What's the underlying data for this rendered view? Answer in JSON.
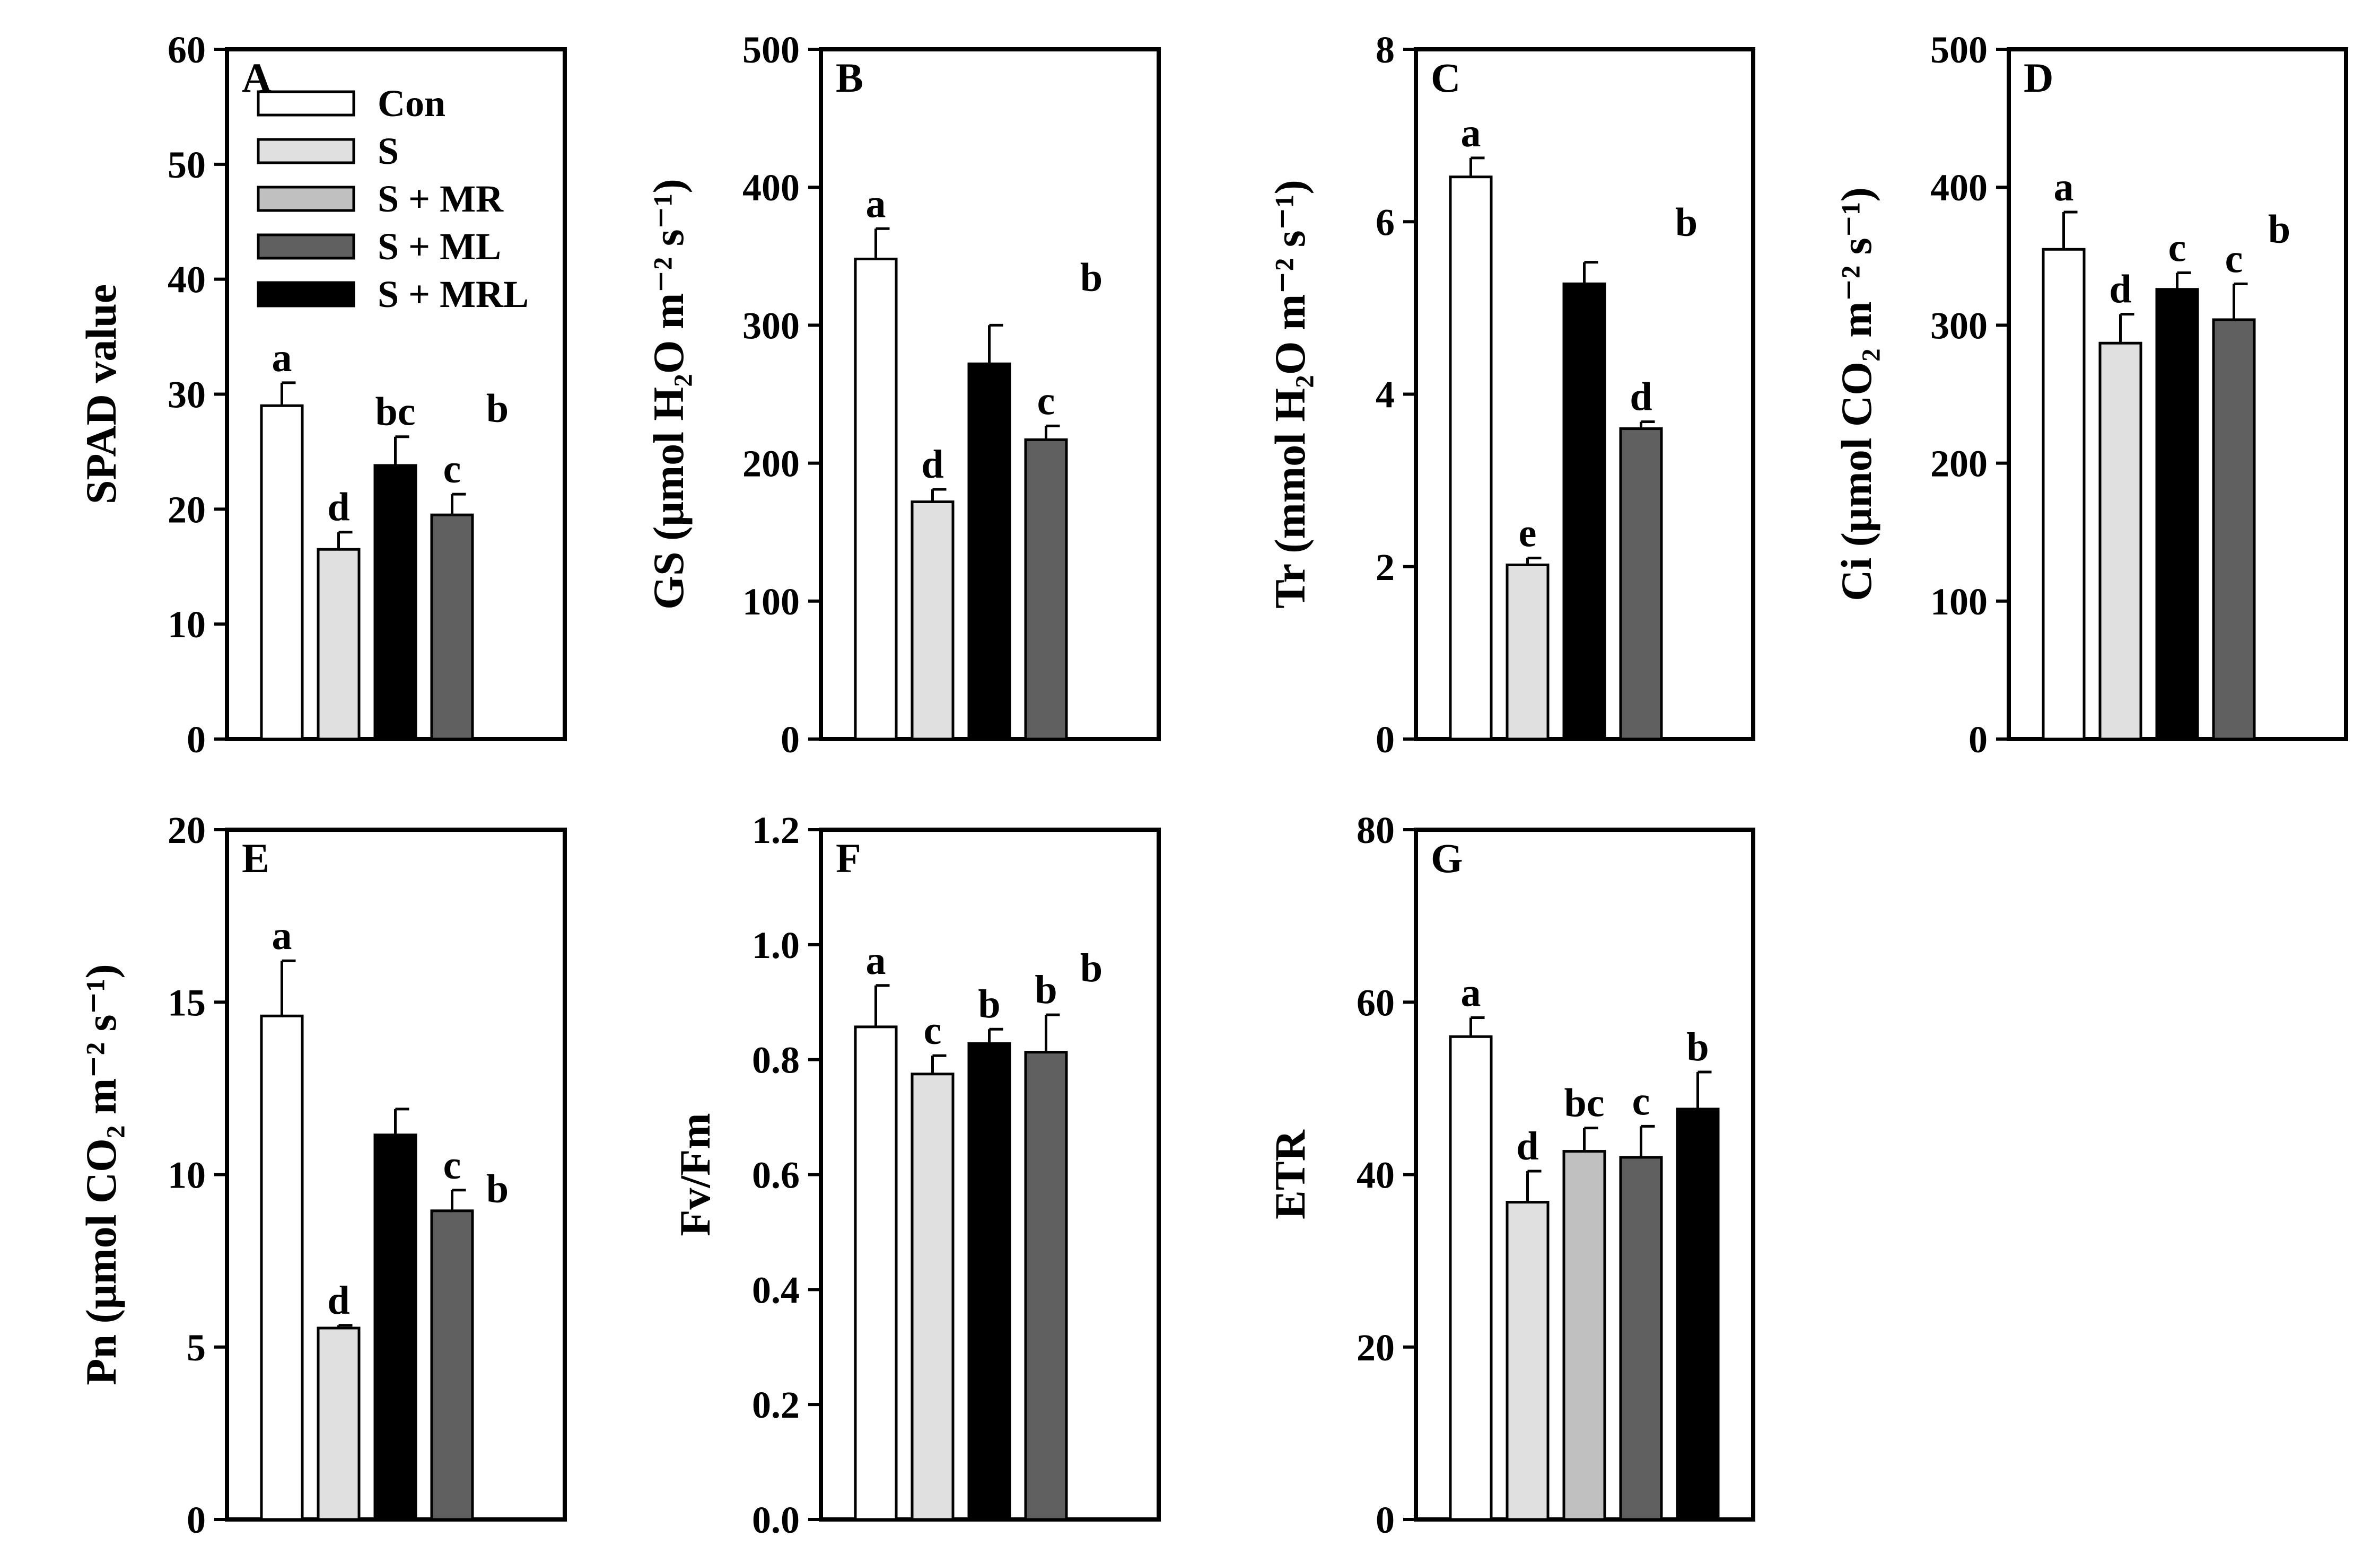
{
  "legend": [
    {
      "label": "Con",
      "color": "#ffffff"
    },
    {
      "label": "S",
      "color": "#e0e0e0"
    },
    {
      "label": "S + MR",
      "color": "#c0c0c0"
    },
    {
      "label": "S + ML",
      "color": "#606060"
    },
    {
      "label": "S + MRL",
      "color": "#000000"
    }
  ],
  "chart_data": [
    {
      "type": "bar",
      "panel": "A",
      "ylabel": "SPAD value",
      "ylim": [
        0,
        60
      ],
      "ticks": [
        "0",
        "10",
        "20",
        "30",
        "40",
        "50",
        "60"
      ],
      "categories": [
        "Con",
        "S",
        "S + MRL",
        "S + ML"
      ],
      "colors": [
        "#ffffff",
        "#e0e0e0",
        "#000000",
        "#606060"
      ],
      "values": [
        29,
        16.5,
        23.8,
        19.5
      ],
      "errors": [
        2,
        1.5,
        2.5,
        1.8
      ],
      "letters": [
        "a",
        "d",
        "bc",
        "c"
      ],
      "extra_letter": "b"
    },
    {
      "type": "bar",
      "panel": "B",
      "ylabel": "GS (μmol H₂O m⁻² s⁻¹)",
      "ylim": [
        0,
        500
      ],
      "ticks": [
        "0",
        "100",
        "200",
        "300",
        "400",
        "500"
      ],
      "categories": [
        "Con",
        "S",
        "S + MRL",
        "S + ML"
      ],
      "colors": [
        "#ffffff",
        "#e0e0e0",
        "#000000",
        "#606060"
      ],
      "values": [
        348,
        172,
        272,
        217
      ],
      "errors": [
        22,
        9,
        28,
        10
      ],
      "letters": [
        "a",
        "d",
        "",
        "c"
      ],
      "extra_letter": "b"
    },
    {
      "type": "bar",
      "panel": "C",
      "ylabel": "Tr (mmol H₂O m⁻² s⁻¹)",
      "ylim": [
        0,
        8
      ],
      "ticks": [
        "0",
        "2",
        "4",
        "6",
        "8"
      ],
      "categories": [
        "Con",
        "S",
        "S + MRL",
        "S + ML"
      ],
      "colors": [
        "#ffffff",
        "#e0e0e0",
        "#000000",
        "#606060"
      ],
      "values": [
        6.52,
        2.02,
        5.28,
        3.6
      ],
      "errors": [
        0.22,
        0.08,
        0.25,
        0.08
      ],
      "letters": [
        "a",
        "e",
        "",
        "d"
      ],
      "extra_letter": "b"
    },
    {
      "type": "bar",
      "panel": "D",
      "ylabel": "Ci (μmol CO₂ m⁻² s⁻¹)",
      "ylim": [
        0,
        500
      ],
      "ticks": [
        "0",
        "100",
        "200",
        "300",
        "400",
        "500"
      ],
      "categories": [
        "Con",
        "S",
        "S + MRL",
        "S + ML"
      ],
      "colors": [
        "#ffffff",
        "#e0e0e0",
        "#000000",
        "#606060"
      ],
      "values": [
        355,
        287,
        326,
        304
      ],
      "errors": [
        27,
        21,
        12,
        26
      ],
      "letters": [
        "a",
        "d",
        "c",
        "c"
      ],
      "extra_letter": "b"
    },
    {
      "type": "bar",
      "panel": "E",
      "ylabel": "Pn (μmol CO₂ m⁻² s⁻¹)",
      "ylim": [
        0,
        20
      ],
      "ticks": [
        "0",
        "5",
        "10",
        "15",
        "20"
      ],
      "categories": [
        "Con",
        "S",
        "S + MRL",
        "S + ML"
      ],
      "colors": [
        "#ffffff",
        "#e0e0e0",
        "#000000",
        "#606060"
      ],
      "values": [
        14.6,
        5.55,
        11.15,
        8.95
      ],
      "errors": [
        1.6,
        0.08,
        0.75,
        0.6
      ],
      "letters": [
        "a",
        "d",
        "",
        "c"
      ],
      "extra_letter": "b"
    },
    {
      "type": "bar",
      "panel": "F",
      "ylabel": "Fv/Fm",
      "ylim": [
        0,
        1.2
      ],
      "ticks": [
        "0.0",
        "0.2",
        "0.4",
        "0.6",
        "0.8",
        "1.0",
        "1.2"
      ],
      "categories": [
        "Con",
        "S",
        "S + MRL",
        "S + ML"
      ],
      "colors": [
        "#ffffff",
        "#e0e0e0",
        "#000000",
        "#606060"
      ],
      "values": [
        0.857,
        0.775,
        0.828,
        0.813
      ],
      "errors": [
        0.072,
        0.032,
        0.025,
        0.065
      ],
      "letters": [
        "a",
        "c",
        "b",
        "b"
      ],
      "extra_letter": "b"
    },
    {
      "type": "bar",
      "panel": "G",
      "ylabel": "ETR",
      "ylim": [
        0,
        80
      ],
      "ticks": [
        "0",
        "20",
        "40",
        "60",
        "80"
      ],
      "categories": [
        "Con",
        "S",
        "S + MR",
        "S + ML",
        "S + MRL"
      ],
      "colors": [
        "#ffffff",
        "#e0e0e0",
        "#c0c0c0",
        "#606060",
        "#000000"
      ],
      "values": [
        56,
        36.8,
        42.7,
        42.0,
        47.6
      ],
      "errors": [
        2.2,
        3.6,
        2.7,
        3.6,
        4.3
      ],
      "letters": [
        "a",
        "d",
        "bc",
        "c",
        "b"
      ],
      "extra_letter": ""
    }
  ]
}
